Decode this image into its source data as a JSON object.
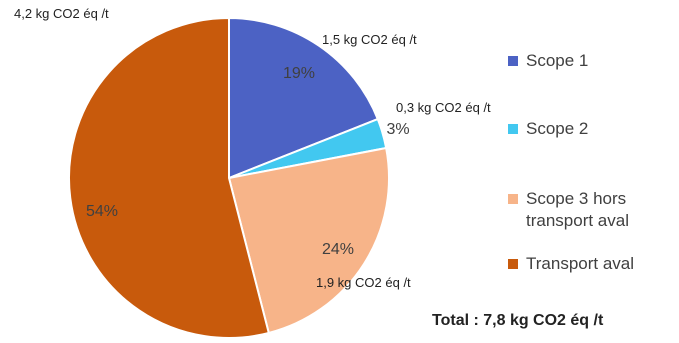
{
  "chart_data": {
    "type": "pie",
    "categories": [
      "Scope 1",
      "Scope 2",
      "Scope 3 hors transport aval",
      "Transport aval"
    ],
    "values": [
      19,
      3,
      24,
      54
    ],
    "percent_labels": [
      "19%",
      "3%",
      "24%",
      "54%"
    ],
    "value_labels": [
      "1,5 kg CO2 éq /t",
      "0,3 kg CO2 éq /t",
      "1,9 kg CO2 éq /t",
      "4,2 kg CO2 éq /t"
    ],
    "colors": [
      "#4c62c4",
      "#42c8f0",
      "#f7b489",
      "#c85a0c"
    ],
    "legend_position": "right",
    "total_label": "Total : 7,8 kg CO2 éq /t"
  }
}
